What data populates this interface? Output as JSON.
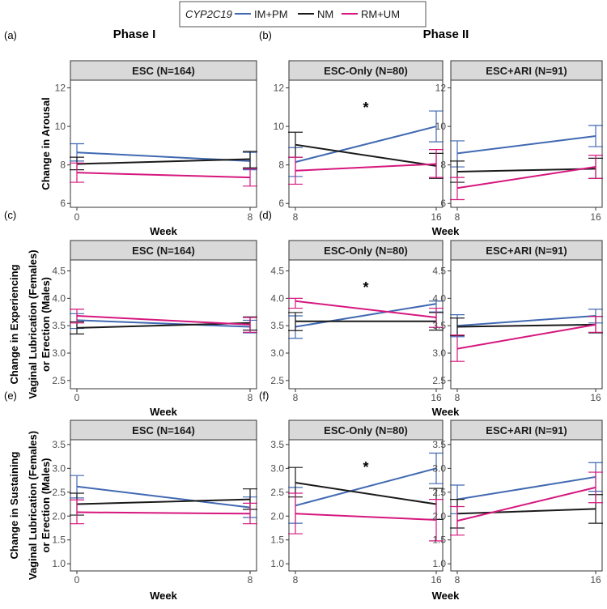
{
  "legend": {
    "title": "CYP2C19",
    "entries": [
      {
        "label": "IM+PM",
        "color": "#4169B2"
      },
      {
        "label": "NM",
        "color": "#1A1A1A"
      },
      {
        "label": "RM+UM",
        "color": "#D6177E"
      }
    ]
  },
  "phase_titles": {
    "phase1": "Phase I",
    "phase2": "Phase II"
  },
  "x_label": "Week",
  "rows": [
    {
      "ylabel": [
        "Change in Arousal"
      ],
      "ylim": [
        5.8,
        12.4
      ],
      "ticks": [
        6,
        8,
        10,
        12
      ],
      "tick_labels": [
        "6",
        "8",
        "10",
        "12"
      ]
    },
    {
      "ylabel": [
        "Change in Experiencing",
        "Vaginal Lubrication (Females)",
        "or Erection (Males)"
      ],
      "ylim": [
        2.35,
        4.7
      ],
      "ticks": [
        2.5,
        3.0,
        3.5,
        4.0,
        4.5
      ],
      "tick_labels": [
        "2.5",
        "3.0",
        "3.5",
        "4.0",
        "4.5"
      ]
    },
    {
      "ylabel": [
        "Change in Sustaining",
        "Vaginal Lubrication (Females)",
        "or Erection (Males)"
      ],
      "ylim": [
        0.85,
        3.6
      ],
      "ticks": [
        1.0,
        1.5,
        2.0,
        2.5,
        3.0,
        3.5
      ],
      "tick_labels": [
        "1.0",
        "1.5",
        "2.0",
        "2.5",
        "3.0",
        "3.5"
      ]
    }
  ],
  "chart_data": [
    {
      "type": "line",
      "panel": "(a)",
      "row": 0,
      "strip": "ESC (N=164)",
      "x": [
        0,
        8
      ],
      "x_labels": [
        "0",
        "8"
      ],
      "series": [
        {
          "name": "IM+PM",
          "values": [
            8.65,
            8.2
          ],
          "lower": [
            8.2,
            7.75
          ],
          "upper": [
            9.1,
            8.65
          ]
        },
        {
          "name": "NM",
          "values": [
            8.05,
            8.3
          ],
          "lower": [
            7.75,
            7.85
          ],
          "upper": [
            8.4,
            8.7
          ]
        },
        {
          "name": "RM+UM",
          "values": [
            7.6,
            7.35
          ],
          "lower": [
            7.1,
            6.9
          ],
          "upper": [
            8.1,
            7.8
          ]
        }
      ]
    },
    {
      "type": "line",
      "panel": "(b)",
      "row": 0,
      "strip": "ESC-Only (N=80)",
      "star": "*",
      "x": [
        8,
        16
      ],
      "x_labels": [
        "8",
        "16"
      ],
      "series": [
        {
          "name": "IM+PM",
          "values": [
            8.15,
            10.0
          ],
          "lower": [
            7.4,
            9.2
          ],
          "upper": [
            8.9,
            10.8
          ]
        },
        {
          "name": "NM",
          "values": [
            9.05,
            7.95
          ],
          "lower": [
            8.4,
            7.3
          ],
          "upper": [
            9.7,
            8.6
          ]
        },
        {
          "name": "RM+UM",
          "values": [
            7.7,
            8.05
          ],
          "lower": [
            7.0,
            7.35
          ],
          "upper": [
            8.4,
            8.8
          ]
        }
      ]
    },
    {
      "type": "line",
      "panel": "(b)",
      "row": 0,
      "strip": "ESC+ARI (N=91)",
      "x": [
        8,
        16
      ],
      "x_labels": [
        "8",
        "16"
      ],
      "series": [
        {
          "name": "IM+PM",
          "values": [
            8.6,
            9.5
          ],
          "lower": [
            7.9,
            8.95
          ],
          "upper": [
            9.25,
            10.05
          ]
        },
        {
          "name": "NM",
          "values": [
            7.65,
            7.8
          ],
          "lower": [
            7.1,
            7.3
          ],
          "upper": [
            8.2,
            8.35
          ]
        },
        {
          "name": "RM+UM",
          "values": [
            6.8,
            7.9
          ],
          "lower": [
            6.2,
            7.3
          ],
          "upper": [
            7.35,
            8.5
          ]
        }
      ]
    },
    {
      "type": "line",
      "panel": "(c)",
      "row": 1,
      "strip": "ESC (N=164)",
      "x": [
        0,
        8
      ],
      "x_labels": [
        "0",
        "8"
      ],
      "series": [
        {
          "name": "IM+PM",
          "values": [
            3.6,
            3.48
          ],
          "lower": [
            3.45,
            3.37
          ],
          "upper": [
            3.72,
            3.6
          ]
        },
        {
          "name": "NM",
          "values": [
            3.46,
            3.55
          ],
          "lower": [
            3.35,
            3.42
          ],
          "upper": [
            3.57,
            3.66
          ]
        },
        {
          "name": "RM+UM",
          "values": [
            3.68,
            3.52
          ],
          "lower": [
            3.55,
            3.38
          ],
          "upper": [
            3.8,
            3.65
          ]
        }
      ]
    },
    {
      "type": "line",
      "panel": "(d)",
      "row": 1,
      "strip": "ESC-Only (N=80)",
      "star": "*",
      "x": [
        8,
        16
      ],
      "x_labels": [
        "8",
        "16"
      ],
      "series": [
        {
          "name": "IM+PM",
          "values": [
            3.48,
            3.9
          ],
          "lower": [
            3.27,
            3.75
          ],
          "upper": [
            3.68,
            3.95
          ]
        },
        {
          "name": "NM",
          "values": [
            3.58,
            3.58
          ],
          "lower": [
            3.41,
            3.42
          ],
          "upper": [
            3.74,
            3.74
          ]
        },
        {
          "name": "RM+UM",
          "values": [
            3.95,
            3.65
          ],
          "lower": [
            3.82,
            3.47
          ],
          "upper": [
            4.0,
            3.82
          ]
        }
      ]
    },
    {
      "type": "line",
      "panel": "(d)",
      "row": 1,
      "strip": "ESC+ARI (N=91)",
      "x": [
        8,
        16
      ],
      "x_labels": [
        "8",
        "16"
      ],
      "series": [
        {
          "name": "IM+PM",
          "values": [
            3.5,
            3.68
          ],
          "lower": [
            3.3,
            3.55
          ],
          "upper": [
            3.7,
            3.8
          ]
        },
        {
          "name": "NM",
          "values": [
            3.48,
            3.52
          ],
          "lower": [
            3.32,
            3.37
          ],
          "upper": [
            3.64,
            3.67
          ]
        },
        {
          "name": "RM+UM",
          "values": [
            3.08,
            3.52
          ],
          "lower": [
            2.85,
            3.38
          ],
          "upper": [
            3.33,
            3.67
          ]
        }
      ]
    },
    {
      "type": "line",
      "panel": "(e)",
      "row": 2,
      "strip": "ESC (N=164)",
      "x": [
        0,
        8
      ],
      "x_labels": [
        "0",
        "8"
      ],
      "series": [
        {
          "name": "IM+PM",
          "values": [
            2.62,
            2.18
          ],
          "lower": [
            2.38,
            1.97
          ],
          "upper": [
            2.85,
            2.4
          ]
        },
        {
          "name": "NM",
          "values": [
            2.25,
            2.35
          ],
          "lower": [
            2.02,
            2.14
          ],
          "upper": [
            2.48,
            2.57
          ]
        },
        {
          "name": "RM+UM",
          "values": [
            2.08,
            2.05
          ],
          "lower": [
            1.84,
            1.84
          ],
          "upper": [
            2.34,
            2.27
          ]
        }
      ]
    },
    {
      "type": "line",
      "panel": "(f)",
      "row": 2,
      "strip": "ESC-Only (N=80)",
      "star": "*",
      "x": [
        8,
        16
      ],
      "x_labels": [
        "8",
        "16"
      ],
      "series": [
        {
          "name": "IM+PM",
          "values": [
            2.22,
            3.0
          ],
          "lower": [
            1.85,
            2.68
          ],
          "upper": [
            2.6,
            3.32
          ]
        },
        {
          "name": "NM",
          "values": [
            2.7,
            2.25
          ],
          "lower": [
            2.4,
            1.93
          ],
          "upper": [
            3.02,
            2.58
          ]
        },
        {
          "name": "RM+UM",
          "values": [
            2.05,
            1.92
          ],
          "lower": [
            1.63,
            1.48
          ],
          "upper": [
            2.48,
            2.35
          ]
        }
      ]
    },
    {
      "type": "line",
      "panel": "(f)",
      "row": 2,
      "strip": "ESC+ARI (N=91)",
      "x": [
        8,
        16
      ],
      "x_labels": [
        "8",
        "16"
      ],
      "series": [
        {
          "name": "IM+PM",
          "values": [
            2.35,
            2.82
          ],
          "lower": [
            2.05,
            2.52
          ],
          "upper": [
            2.65,
            3.12
          ]
        },
        {
          "name": "NM",
          "values": [
            2.05,
            2.15
          ],
          "lower": [
            1.75,
            1.85
          ],
          "upper": [
            2.35,
            2.45
          ]
        },
        {
          "name": "RM+UM",
          "values": [
            1.9,
            2.6
          ],
          "lower": [
            1.6,
            2.28
          ],
          "upper": [
            2.2,
            2.92
          ]
        }
      ]
    }
  ]
}
